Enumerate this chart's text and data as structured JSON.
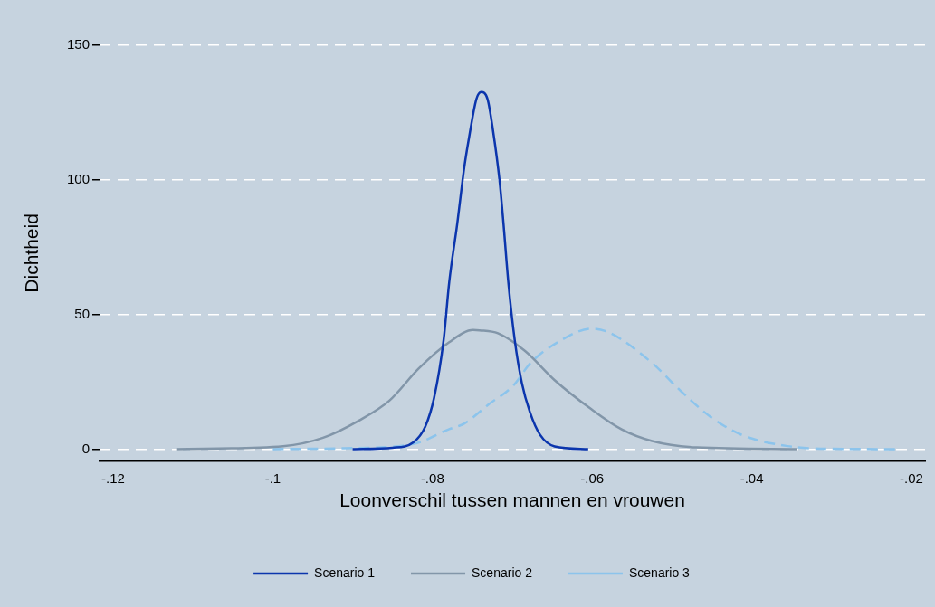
{
  "chart_data": {
    "type": "line",
    "xlabel": "Loonverschil tussen mannen en vrouwen",
    "ylabel": "Dichtheid",
    "xlim": [
      -0.1217,
      -0.0183
    ],
    "ylim": [
      -4.5,
      150
    ],
    "xticks": [
      {
        "value": -0.12,
        "label": "-.12"
      },
      {
        "value": -0.1,
        "label": "-.1"
      },
      {
        "value": -0.08,
        "label": "-.08"
      },
      {
        "value": -0.06,
        "label": "-.06"
      },
      {
        "value": -0.04,
        "label": "-.04"
      },
      {
        "value": -0.02,
        "label": "-.02"
      }
    ],
    "yticks": [
      0,
      50,
      100,
      150
    ],
    "grid": "y",
    "legend": "bottom",
    "marker": "none",
    "series": [
      {
        "name": "Scenario 1",
        "color": "#0b35ad",
        "line_style": "solid",
        "x": [
          -0.09,
          -0.085,
          -0.0824,
          -0.0809,
          -0.0798,
          -0.0786,
          -0.0779,
          -0.0769,
          -0.076,
          -0.0754,
          -0.0745,
          -0.0739,
          -0.0731,
          -0.0724,
          -0.0716,
          -0.0711,
          -0.0705,
          -0.0697,
          -0.0688,
          -0.0678,
          -0.0665,
          -0.0647,
          -0.0605
        ],
        "values": [
          0,
          0.5,
          2.5,
          8.4,
          19,
          40.6,
          62,
          83.6,
          105,
          116,
          130,
          132.6,
          130,
          118,
          99.8,
          83.6,
          62,
          40.6,
          24.5,
          13.8,
          5.2,
          1,
          0
        ]
      },
      {
        "name": "Scenario 2",
        "color": "#8296a9",
        "line_style": "solid",
        "x": [
          -0.1121,
          -0.0987,
          -0.0937,
          -0.0892,
          -0.0854,
          -0.0817,
          -0.0779,
          -0.0749,
          -0.0741,
          -0.0718,
          -0.0684,
          -0.0647,
          -0.0601,
          -0.0563,
          -0.0525,
          -0.0469,
          -0.0344
        ],
        "values": [
          0,
          1.1,
          4.2,
          10.6,
          18,
          30,
          39.7,
          44.2,
          44.1,
          43,
          36.4,
          25.6,
          14.8,
          7.3,
          3,
          0.6,
          0
        ]
      },
      {
        "name": "Scenario 3",
        "color": "#8cc4ec",
        "line_style": "dashed",
        "x": [
          -0.1,
          -0.0911,
          -0.0824,
          -0.0779,
          -0.076,
          -0.073,
          -0.0699,
          -0.0677,
          -0.0643,
          -0.0601,
          -0.0579,
          -0.0525,
          -0.0488,
          -0.045,
          -0.0412,
          -0.0355,
          -0.0299,
          -0.0219
        ],
        "values": [
          0,
          0.3,
          1.9,
          7.4,
          9.5,
          16.5,
          23.5,
          32,
          39.7,
          44.7,
          43.3,
          32,
          21.3,
          11.6,
          5.2,
          1.1,
          0.1,
          0
        ]
      }
    ]
  }
}
